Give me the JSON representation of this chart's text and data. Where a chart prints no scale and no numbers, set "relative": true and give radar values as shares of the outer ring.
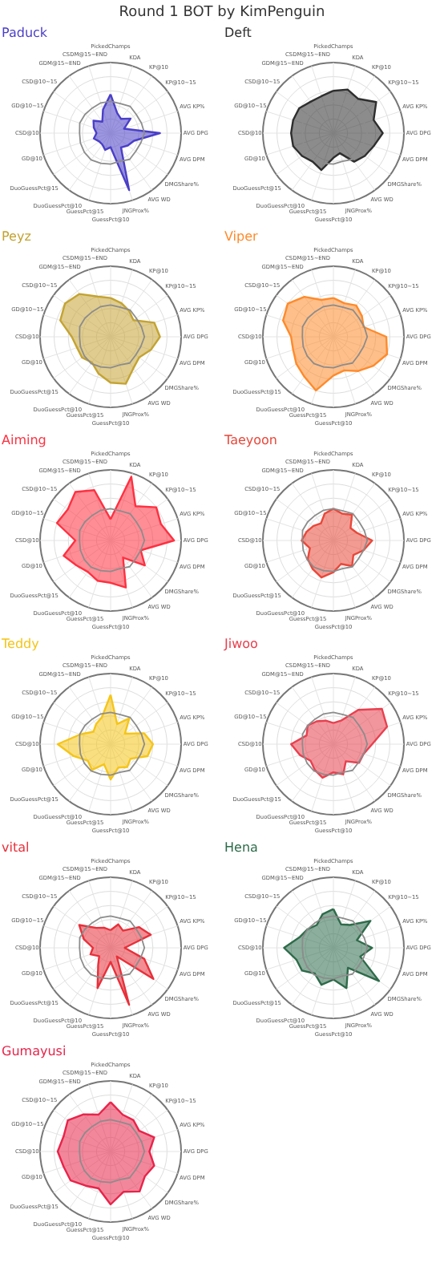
{
  "chart_data": [
    {
      "type": "radar",
      "title": "Paduck",
      "annotations": [
        "Round 1 BOT by KimPenguin"
      ],
      "relative": true,
      "grid": true,
      "categories": [
        "PickedChamps",
        "KDA",
        "KP@10",
        "KP@10~15",
        "AVG KP%",
        "AVG DPG",
        "AVG DPM",
        "DMGShare%",
        "AVG WD",
        "JNGProx%",
        "GuessPct@10",
        "GuessPct@15",
        "DuoGuessPct@10",
        "DuoGuessPct@15",
        "GD@10",
        "CSD@10",
        "GD@10~15",
        "CSD@10~15",
        "GDM@15~END",
        "CSDM@15~END"
      ],
      "series": [
        {
          "color": "#4b3fc8",
          "values": [
            0.55,
            0.3,
            0.25,
            0.35,
            0.2,
            0.7,
            0.35,
            0.3,
            0.25,
            0.85,
            0.2,
            0.25,
            0.2,
            0.2,
            0.25,
            0.2,
            0.25,
            0.3,
            0.2,
            0.35
          ]
        },
        {
          "color": "#8c8c8c",
          "values": [
            0.45,
            0.44,
            0.47,
            0.45,
            0.46,
            0.48,
            0.45,
            0.44,
            0.46,
            0.42,
            0.44,
            0.45,
            0.47,
            0.46,
            0.45,
            0.44,
            0.46,
            0.45,
            0.44,
            0.45
          ]
        }
      ]
    },
    {
      "type": "radar",
      "title": "Deft",
      "relative": true,
      "grid": true,
      "categories": [
        "PickedChamps",
        "KDA",
        "KP@10",
        "KP@10~15",
        "AVG KP%",
        "AVG DPG",
        "AVG DPM",
        "DMGShare%",
        "AVG WD",
        "JNGProx%",
        "GuessPct@10",
        "GuessPct@15",
        "DuoGuessPct@10",
        "DuoGuessPct@15",
        "GD@10",
        "CSD@10",
        "GD@10~15",
        "CSD@10~15",
        "GDM@15~END",
        "CSDM@15~END"
      ],
      "series": [
        {
          "color": "#2e2e2e",
          "values": [
            0.6,
            0.65,
            0.6,
            0.75,
            0.6,
            0.7,
            0.6,
            0.55,
            0.5,
            0.3,
            0.35,
            0.55,
            0.5,
            0.55,
            0.6,
            0.6,
            0.6,
            0.6,
            0.55,
            0.55
          ]
        },
        {
          "color": "#8c8c8c",
          "values": [
            0.45,
            0.44,
            0.47,
            0.45,
            0.46,
            0.48,
            0.45,
            0.44,
            0.46,
            0.42,
            0.44,
            0.45,
            0.47,
            0.46,
            0.45,
            0.44,
            0.46,
            0.45,
            0.44,
            0.45
          ]
        }
      ]
    },
    {
      "type": "radar",
      "title": "Peyz",
      "relative": true,
      "grid": true,
      "categories": [
        "PickedChamps",
        "KDA",
        "KP@10",
        "KP@10~15",
        "AVG KP%",
        "AVG DPG",
        "AVG DPM",
        "DMGShare%",
        "AVG WD",
        "JNGProx%",
        "GuessPct@10",
        "GuessPct@15",
        "DuoGuessPct@10",
        "DuoGuessPct@15",
        "GD@10",
        "CSD@10",
        "GD@10~15",
        "CSD@10~15",
        "GDM@15~END",
        "CSDM@15~END"
      ],
      "series": [
        {
          "color": "#c4a332",
          "values": [
            0.55,
            0.5,
            0.45,
            0.4,
            0.65,
            0.7,
            0.6,
            0.5,
            0.55,
            0.7,
            0.65,
            0.55,
            0.45,
            0.5,
            0.5,
            0.55,
            0.75,
            0.8,
            0.75,
            0.6
          ]
        },
        {
          "color": "#8c8c8c",
          "values": [
            0.45,
            0.44,
            0.47,
            0.45,
            0.46,
            0.48,
            0.45,
            0.44,
            0.46,
            0.42,
            0.44,
            0.45,
            0.47,
            0.46,
            0.45,
            0.44,
            0.46,
            0.45,
            0.44,
            0.45
          ]
        }
      ]
    },
    {
      "type": "radar",
      "title": "Viper",
      "relative": true,
      "grid": true,
      "categories": [
        "PickedChamps",
        "KDA",
        "KP@10",
        "KP@10~15",
        "AVG KP%",
        "AVG DPG",
        "AVG DPM",
        "DMGShare%",
        "AVG WD",
        "JNGProx%",
        "GuessPct@10",
        "GuessPct@15",
        "DuoGuessPct@10",
        "DuoGuessPct@15",
        "GD@10",
        "CSD@10",
        "GD@10~15",
        "CSD@10~15",
        "GDM@15~END",
        "CSDM@15~END"
      ],
      "series": [
        {
          "color": "#ff8a2a",
          "values": [
            0.55,
            0.5,
            0.55,
            0.5,
            0.45,
            0.75,
            0.8,
            0.7,
            0.6,
            0.5,
            0.55,
            0.8,
            0.7,
            0.65,
            0.6,
            0.6,
            0.75,
            0.8,
            0.7,
            0.55
          ]
        },
        {
          "color": "#8c8c8c",
          "values": [
            0.45,
            0.44,
            0.47,
            0.45,
            0.46,
            0.48,
            0.45,
            0.44,
            0.46,
            0.42,
            0.44,
            0.45,
            0.47,
            0.46,
            0.45,
            0.44,
            0.46,
            0.45,
            0.44,
            0.45
          ]
        }
      ]
    },
    {
      "type": "radar",
      "title": "Aiming",
      "relative": true,
      "grid": true,
      "categories": [
        "PickedChamps",
        "KDA",
        "KP@10",
        "KP@10~15",
        "AVG KP%",
        "AVG DPG",
        "AVG DPM",
        "DMGShare%",
        "AVG WD",
        "JNGProx%",
        "GuessPct@10",
        "GuessPct@15",
        "DuoGuessPct@10",
        "DuoGuessPct@15",
        "GD@10",
        "CSD@10",
        "GD@10~15",
        "CSD@10~15",
        "GDM@15~END",
        "CSDM@15~END"
      ],
      "series": [
        {
          "color": "#ff3040",
          "values": [
            0.3,
            0.95,
            0.6,
            0.8,
            0.75,
            0.9,
            0.45,
            0.6,
            0.3,
            0.7,
            0.6,
            0.6,
            0.55,
            0.6,
            0.7,
            0.5,
            0.8,
            0.75,
            0.85,
            0.75
          ]
        },
        {
          "color": "#8c8c8c",
          "values": [
            0.45,
            0.44,
            0.47,
            0.45,
            0.46,
            0.48,
            0.45,
            0.44,
            0.46,
            0.42,
            0.44,
            0.45,
            0.47,
            0.46,
            0.45,
            0.44,
            0.46,
            0.45,
            0.44,
            0.45
          ]
        }
      ]
    },
    {
      "type": "radar",
      "title": "Taeyoon",
      "relative": true,
      "grid": true,
      "categories": [
        "PickedChamps",
        "KDA",
        "KP@10",
        "KP@10~15",
        "AVG KP%",
        "AVG DPG",
        "AVG DPM",
        "DMGShare%",
        "AVG WD",
        "JNGProx%",
        "GuessPct@10",
        "GuessPct@15",
        "DuoGuessPct@10",
        "DuoGuessPct@15",
        "GD@10",
        "CSD@10",
        "GD@10~15",
        "CSD@10~15",
        "GDM@15~END",
        "CSDM@15~END"
      ],
      "series": [
        {
          "color": "#e8483a",
          "values": [
            0.45,
            0.4,
            0.45,
            0.3,
            0.35,
            0.55,
            0.45,
            0.35,
            0.45,
            0.35,
            0.45,
            0.55,
            0.5,
            0.45,
            0.35,
            0.45,
            0.4,
            0.35,
            0.3,
            0.4
          ]
        },
        {
          "color": "#8c8c8c",
          "values": [
            0.45,
            0.44,
            0.47,
            0.45,
            0.46,
            0.48,
            0.45,
            0.44,
            0.46,
            0.42,
            0.44,
            0.45,
            0.47,
            0.46,
            0.45,
            0.44,
            0.46,
            0.45,
            0.44,
            0.45
          ]
        }
      ]
    },
    {
      "type": "radar",
      "title": "Teddy",
      "relative": true,
      "grid": true,
      "categories": [
        "PickedChamps",
        "KDA",
        "KP@10",
        "KP@10~15",
        "AVG KP%",
        "AVG DPG",
        "AVG DPM",
        "DMGShare%",
        "AVG WD",
        "JNGProx%",
        "GuessPct@10",
        "GuessPct@15",
        "DuoGuessPct@10",
        "DuoGuessPct@15",
        "GD@10",
        "CSD@10",
        "GD@10~15",
        "CSD@10~15",
        "GDM@15~END",
        "CSDM@15~END"
      ],
      "series": [
        {
          "color": "#f5c518",
          "values": [
            0.7,
            0.3,
            0.45,
            0.25,
            0.5,
            0.6,
            0.55,
            0.35,
            0.4,
            0.35,
            0.5,
            0.3,
            0.45,
            0.4,
            0.55,
            0.75,
            0.45,
            0.3,
            0.35,
            0.4
          ]
        },
        {
          "color": "#8c8c8c",
          "values": [
            0.45,
            0.44,
            0.47,
            0.45,
            0.46,
            0.48,
            0.45,
            0.44,
            0.46,
            0.42,
            0.44,
            0.45,
            0.47,
            0.46,
            0.45,
            0.44,
            0.46,
            0.45,
            0.44,
            0.45
          ]
        }
      ]
    },
    {
      "type": "radar",
      "title": "Jiwoo",
      "relative": true,
      "grid": true,
      "categories": [
        "PickedChamps",
        "KDA",
        "KP@10",
        "KP@10~15",
        "AVG KP%",
        "AVG DPG",
        "AVG DPM",
        "DMGShare%",
        "AVG WD",
        "JNGProx%",
        "GuessPct@10",
        "GuessPct@15",
        "DuoGuessPct@10",
        "DuoGuessPct@15",
        "GD@10",
        "CSD@10",
        "GD@10~15",
        "CSD@10~15",
        "GDM@15~END",
        "CSDM@15~END"
      ],
      "series": [
        {
          "color": "#e8404f",
          "values": [
            0.3,
            0.35,
            0.6,
            0.85,
            0.8,
            0.55,
            0.45,
            0.45,
            0.3,
            0.45,
            0.4,
            0.5,
            0.45,
            0.4,
            0.5,
            0.6,
            0.4,
            0.45,
            0.4,
            0.35
          ]
        },
        {
          "color": "#8c8c8c",
          "values": [
            0.45,
            0.44,
            0.47,
            0.45,
            0.46,
            0.48,
            0.45,
            0.44,
            0.46,
            0.42,
            0.44,
            0.45,
            0.47,
            0.46,
            0.45,
            0.44,
            0.46,
            0.45,
            0.44,
            0.45
          ]
        }
      ]
    },
    {
      "type": "radar",
      "title": "vital",
      "relative": true,
      "grid": true,
      "categories": [
        "PickedChamps",
        "KDA",
        "KP@10",
        "KP@10~15",
        "AVG KP%",
        "AVG DPG",
        "AVG DPM",
        "DMGShare%",
        "AVG WD",
        "JNGProx%",
        "GuessPct@10",
        "GuessPct@15",
        "DuoGuessPct@10",
        "DuoGuessPct@15",
        "GD@10",
        "CSD@10",
        "GD@10~15",
        "CSD@10~15",
        "GDM@15~END",
        "CSDM@15~END"
      ],
      "series": [
        {
          "color": "#e8303a",
          "values": [
            0.25,
            0.35,
            0.3,
            0.5,
            0.6,
            0.2,
            0.5,
            0.75,
            0.15,
            0.85,
            0.2,
            0.6,
            0.3,
            0.2,
            0.3,
            0.25,
            0.4,
            0.55,
            0.35,
            0.3
          ]
        },
        {
          "color": "#8c8c8c",
          "values": [
            0.45,
            0.44,
            0.47,
            0.45,
            0.46,
            0.48,
            0.45,
            0.44,
            0.46,
            0.42,
            0.44,
            0.45,
            0.47,
            0.46,
            0.45,
            0.44,
            0.46,
            0.45,
            0.44,
            0.45
          ]
        }
      ]
    },
    {
      "type": "radar",
      "title": "Hena",
      "relative": true,
      "grid": true,
      "categories": [
        "PickedChamps",
        "KDA",
        "KP@10",
        "KP@10~15",
        "AVG KP%",
        "AVG DPG",
        "AVG DPM",
        "DMGShare%",
        "AVG WD",
        "JNGProx%",
        "GuessPct@10",
        "GuessPct@15",
        "DuoGuessPct@10",
        "DuoGuessPct@15",
        "GD@10",
        "CSD@10",
        "GD@10~15",
        "CSD@10~15",
        "GDM@15~END",
        "CSDM@15~END"
      ],
      "series": [
        {
          "color": "#2e6b4a",
          "values": [
            0.55,
            0.35,
            0.4,
            0.65,
            0.35,
            0.55,
            0.4,
            0.8,
            0.35,
            0.6,
            0.45,
            0.55,
            0.45,
            0.55,
            0.55,
            0.7,
            0.5,
            0.45,
            0.4,
            0.5
          ]
        },
        {
          "color": "#8c8c8c",
          "values": [
            0.45,
            0.44,
            0.47,
            0.45,
            0.46,
            0.48,
            0.45,
            0.44,
            0.46,
            0.42,
            0.44,
            0.45,
            0.47,
            0.46,
            0.45,
            0.44,
            0.46,
            0.45,
            0.44,
            0.45
          ]
        }
      ]
    },
    {
      "type": "radar",
      "title": "Gumayusi",
      "relative": true,
      "grid": true,
      "categories": [
        "PickedChamps",
        "KDA",
        "KP@10",
        "KP@10~15",
        "AVG KP%",
        "AVG DPG",
        "AVG DPM",
        "DMGShare%",
        "AVG WD",
        "JNGProx%",
        "GuessPct@10",
        "GuessPct@15",
        "DuoGuessPct@10",
        "DuoGuessPct@15",
        "GD@10",
        "CSD@10",
        "GD@10~15",
        "CSD@10~15",
        "GDM@15~END",
        "CSDM@15~END"
      ],
      "series": [
        {
          "color": "#e8244a",
          "values": [
            0.7,
            0.55,
            0.55,
            0.5,
            0.65,
            0.55,
            0.65,
            0.6,
            0.7,
            0.6,
            0.75,
            0.55,
            0.6,
            0.7,
            0.7,
            0.75,
            0.7,
            0.75,
            0.65,
            0.55
          ]
        },
        {
          "color": "#8c8c8c",
          "values": [
            0.45,
            0.44,
            0.47,
            0.45,
            0.46,
            0.48,
            0.45,
            0.44,
            0.46,
            0.42,
            0.44,
            0.45,
            0.47,
            0.46,
            0.45,
            0.44,
            0.46,
            0.45,
            0.44,
            0.45
          ]
        }
      ]
    }
  ]
}
